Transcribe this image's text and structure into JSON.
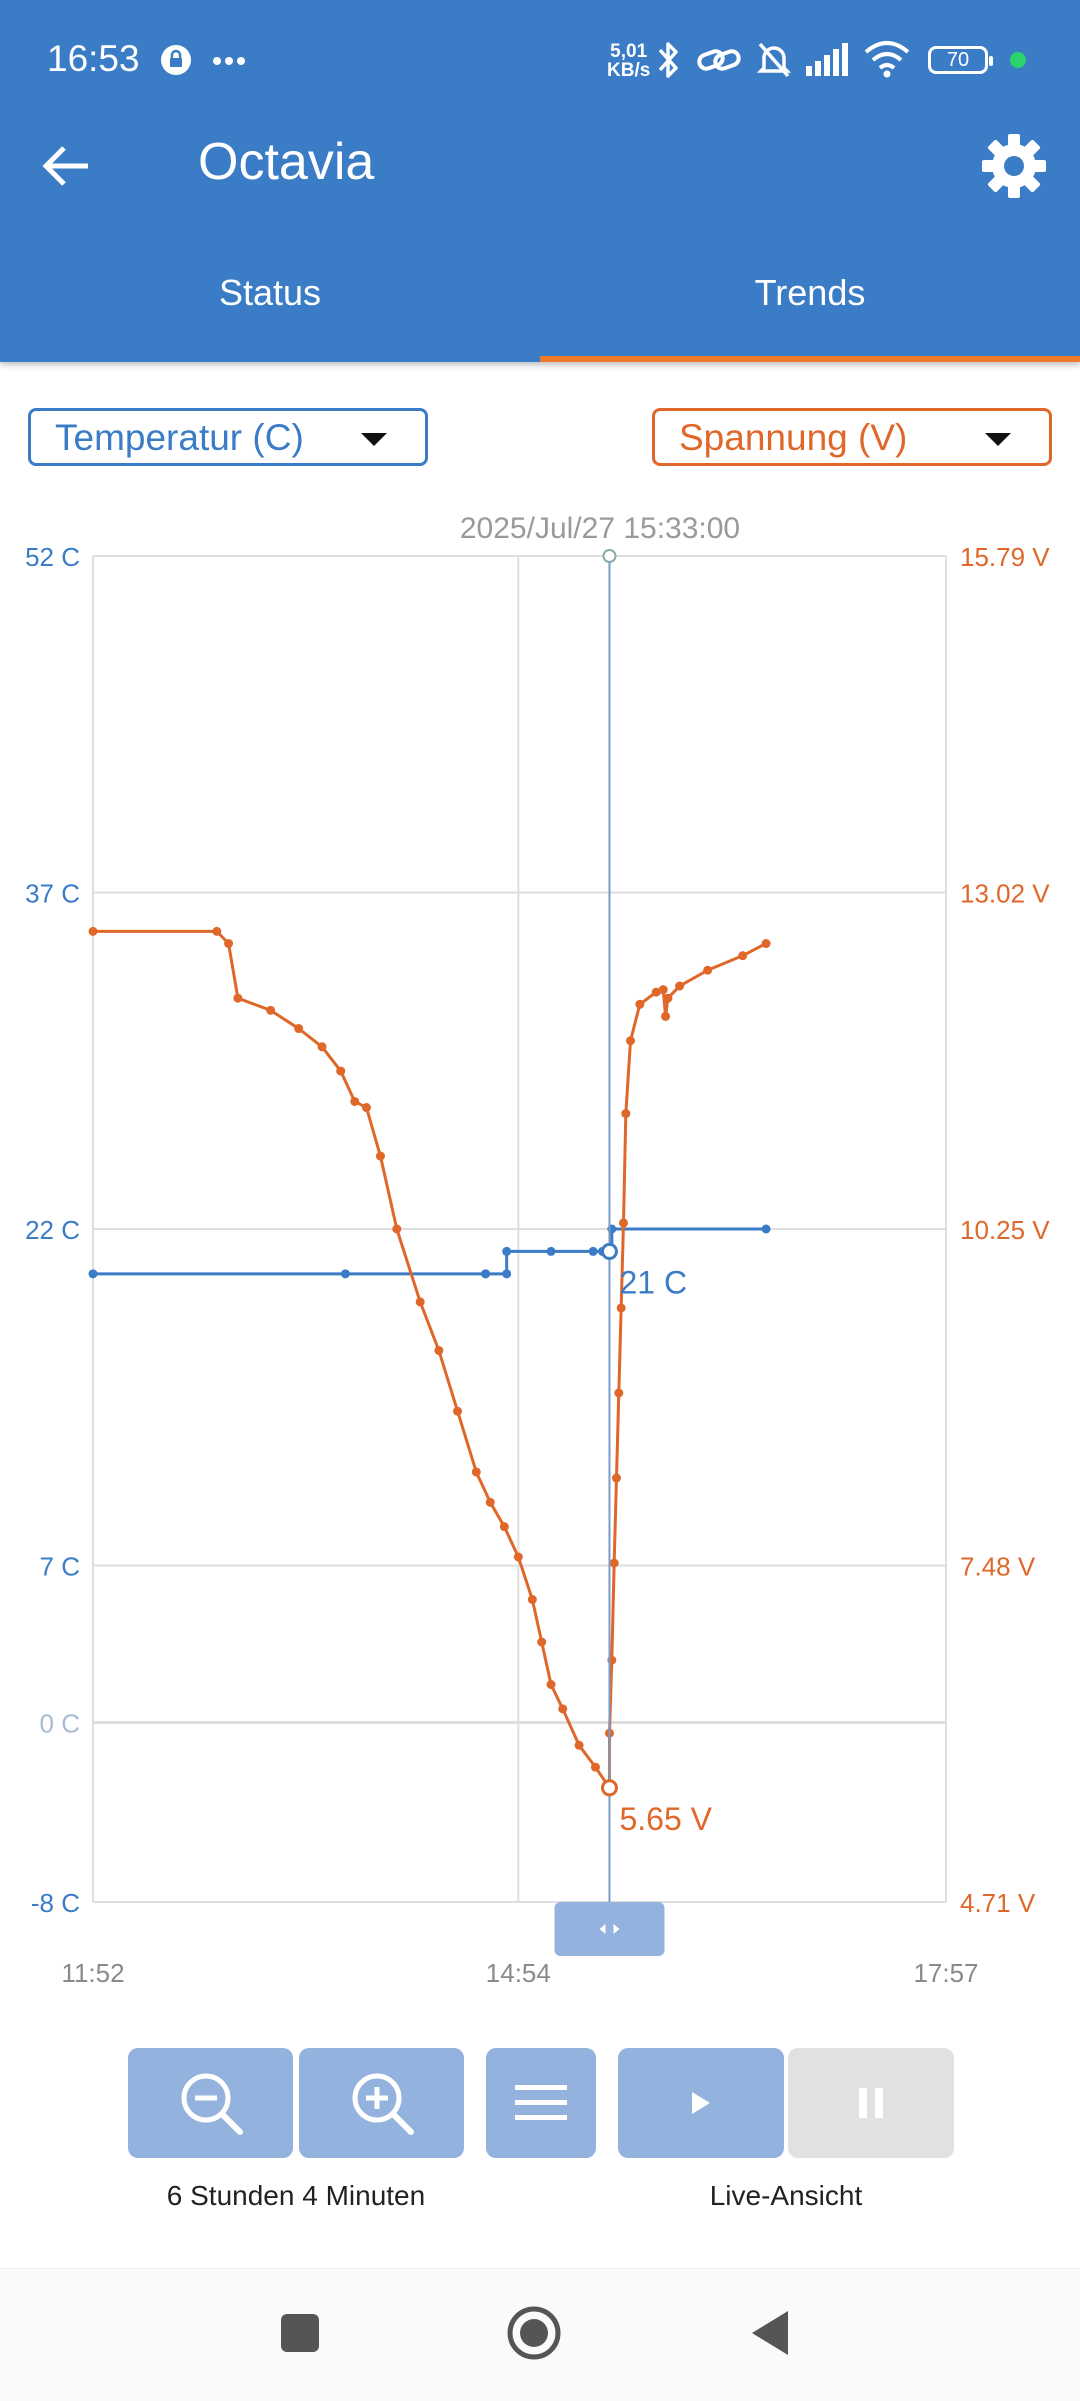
{
  "status_bar": {
    "time": "16:53",
    "net_speed_top": "5,01",
    "net_speed_bottom": "KB/s",
    "battery": "70",
    "icons": [
      "lock-icon",
      "more-icon",
      "bluetooth-icon",
      "link-icon",
      "mute-icon",
      "signal-icon",
      "wifi-icon",
      "battery-icon"
    ]
  },
  "app_bar": {
    "title": "Octavia",
    "back_icon": "arrow-back-icon",
    "settings_icon": "gear-icon"
  },
  "tabs": [
    {
      "label": "Status",
      "selected": false
    },
    {
      "label": "Trends",
      "selected": true
    }
  ],
  "selectors": {
    "left": {
      "label": "Temperatur (C)",
      "color": "#3b7cc7"
    },
    "right": {
      "label": "Spannung (V)",
      "color": "#e0672a"
    }
  },
  "chart_data": {
    "type": "line",
    "header": "2025/Jul/27 15:33:00",
    "x_ticks": [
      "11:52",
      "14:54",
      "17:57"
    ],
    "x_range": [
      "11:52",
      "17:57"
    ],
    "left_axis": {
      "unit": "C",
      "ticks": [
        "52 C",
        "37 C",
        "22 C",
        "7 C",
        "0 C",
        "-8 C"
      ],
      "range": [
        -8,
        52
      ]
    },
    "right_axis": {
      "unit": "V",
      "ticks": [
        "15.79 V",
        "13.02 V",
        "10.25 V",
        "7.48 V",
        "4.71 V"
      ],
      "range": [
        4.71,
        15.79
      ]
    },
    "grid": true,
    "cursor": {
      "time": "15:33",
      "temp_label": "21 C",
      "volt_label": "5.65 V",
      "temp": 21,
      "volt": 5.65
    },
    "series": [
      {
        "axis": "left",
        "color": "#3b7cc7",
        "points": [
          [
            "11:52",
            20
          ],
          [
            "13:40",
            20
          ],
          [
            "14:40",
            20
          ],
          [
            "14:40",
            20
          ],
          [
            "14:49",
            20
          ],
          [
            "14:49",
            21
          ],
          [
            "15:08",
            21
          ],
          [
            "15:26",
            21
          ],
          [
            "15:30",
            21
          ],
          [
            "15:33",
            21
          ],
          [
            "15:34",
            21
          ],
          [
            "15:34",
            22
          ],
          [
            "16:40",
            22
          ]
        ]
      },
      {
        "axis": "right",
        "color": "#e0672a",
        "points": [
          [
            "11:52",
            12.7
          ],
          [
            "12:45",
            12.7
          ],
          [
            "12:50",
            12.6
          ],
          [
            "12:54",
            12.15
          ],
          [
            "13:08",
            12.05
          ],
          [
            "13:20",
            11.9
          ],
          [
            "13:30",
            11.75
          ],
          [
            "13:38",
            11.55
          ],
          [
            "13:44",
            11.3
          ],
          [
            "13:49",
            11.25
          ],
          [
            "13:55",
            10.85
          ],
          [
            "14:02",
            10.25
          ],
          [
            "14:12",
            9.65
          ],
          [
            "14:20",
            9.25
          ],
          [
            "14:28",
            8.75
          ],
          [
            "14:36",
            8.25
          ],
          [
            "14:42",
            8.0
          ],
          [
            "14:48",
            7.8
          ],
          [
            "14:54",
            7.55
          ],
          [
            "15:00",
            7.2
          ],
          [
            "15:04",
            6.85
          ],
          [
            "15:08",
            6.5
          ],
          [
            "15:13",
            6.3
          ],
          [
            "15:20",
            6.0
          ],
          [
            "15:27",
            5.82
          ],
          [
            "15:33",
            5.65
          ],
          [
            "15:33",
            6.1
          ],
          [
            "15:34",
            6.7
          ],
          [
            "15:35",
            7.5
          ],
          [
            "15:36",
            8.2
          ],
          [
            "15:37",
            8.9
          ],
          [
            "15:38",
            9.6
          ],
          [
            "15:39",
            10.3
          ],
          [
            "15:40",
            11.2
          ],
          [
            "15:42",
            11.8
          ],
          [
            "15:46",
            12.1
          ],
          [
            "15:53",
            12.2
          ],
          [
            "15:56",
            12.22
          ],
          [
            "15:57",
            12.0
          ],
          [
            "15:58",
            12.15
          ],
          [
            "16:03",
            12.25
          ],
          [
            "16:15",
            12.38
          ],
          [
            "16:30",
            12.5
          ],
          [
            "16:40",
            12.6
          ]
        ]
      }
    ]
  },
  "controls": {
    "zoom_out_icon": "zoom-out-icon",
    "zoom_in_icon": "zoom-in-icon",
    "menu_icon": "menu-icon",
    "play_icon": "play-icon",
    "pause_icon": "pause-icon",
    "zoom_caption": "6 Stunden 4 Minuten",
    "live_caption": "Live-Ansicht"
  },
  "nav_bar": {
    "icons": [
      "recents-icon",
      "home-icon",
      "back-icon"
    ]
  }
}
